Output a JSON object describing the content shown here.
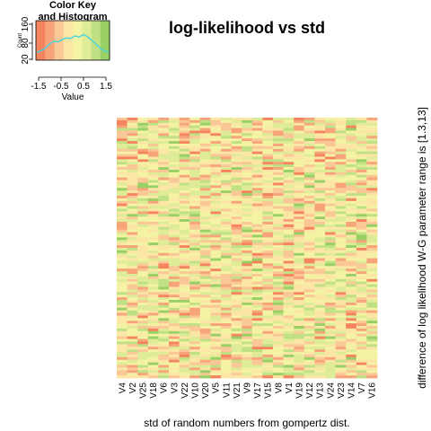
{
  "chart_data": {
    "type": "heatmap",
    "title": "log-likelihood vs std",
    "xlabel": "std of random numbers from gompertz dist.",
    "ylabel": "difference of log likelihood W-G parameter range is [1.3,13]",
    "columns": [
      "V4",
      "V2",
      "V25",
      "V18",
      "V6",
      "V3",
      "V22",
      "V10",
      "V20",
      "V5",
      "V11",
      "V21",
      "V9",
      "V17",
      "V15",
      "V8",
      "V1",
      "V19",
      "V12",
      "V13",
      "V24",
      "V23",
      "V14",
      "V7",
      "V16"
    ],
    "n_rows": 100,
    "palette": [
      "#F4855F",
      "#F7A47A",
      "#FAC897",
      "#FCE6A6",
      "#F4F2A3",
      "#DEEB97",
      "#BFE184",
      "#98D066"
    ],
    "color_key": {
      "title_line1": "Color Key",
      "title_line2": "and Histogram",
      "x_label": "Value",
      "x_ticks": [
        "-1.5",
        "-0.5",
        "0.5",
        "1.5"
      ],
      "y_label": "Count",
      "y_ticks": [
        "20",
        "80",
        "160"
      ],
      "hist_color": "#46D5E0"
    }
  }
}
